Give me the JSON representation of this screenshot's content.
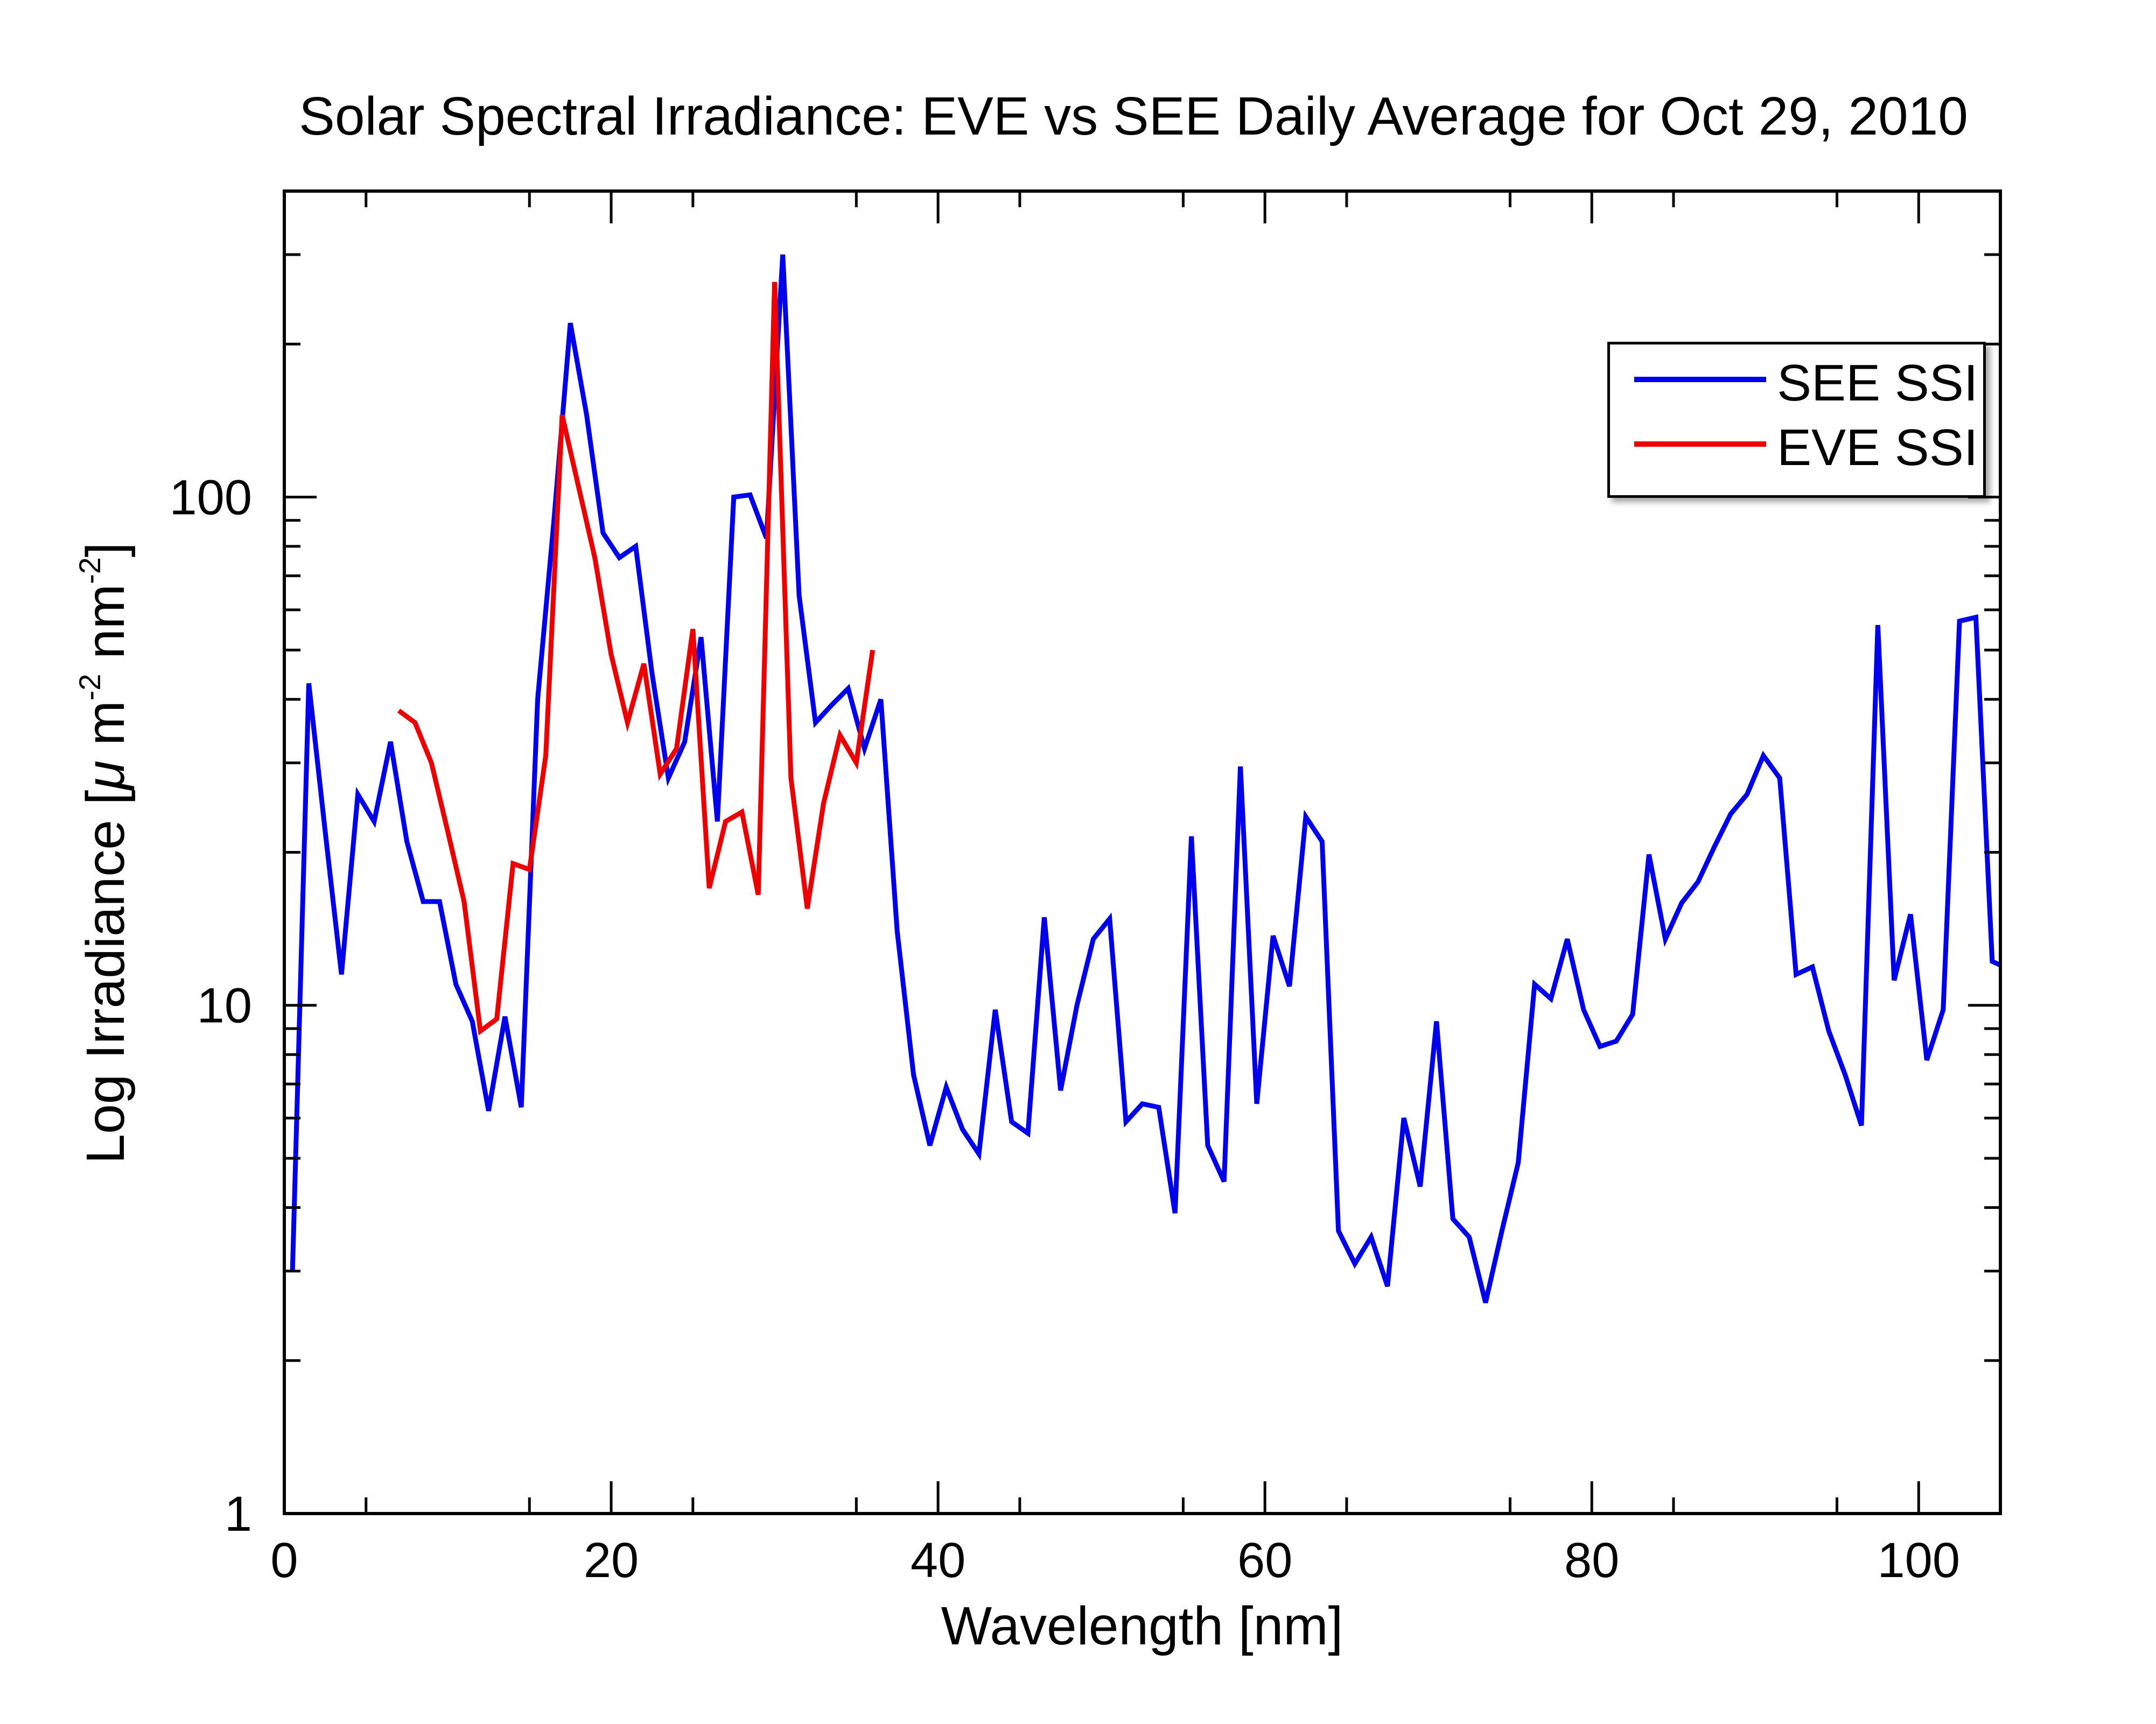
{
  "chart_data": {
    "type": "line",
    "title": "Solar Spectral Irradiance: EVE vs SEE Daily Average for Oct 29, 2010",
    "xlabel": "Wavelength [nm]",
    "ylabel_parts": [
      "Log Irradiance [",
      "μ",
      " m",
      "-2",
      " nm",
      "-2",
      "]"
    ],
    "xlim": [
      0,
      105
    ],
    "ylim": [
      1,
      400
    ],
    "yscale": "log",
    "x_ticks": [
      "0",
      "20",
      "40",
      "60",
      "80",
      "100"
    ],
    "x_tick_values": [
      0,
      20,
      40,
      60,
      80,
      100
    ],
    "y_ticks": [
      "1",
      "10",
      "100"
    ],
    "y_tick_values": [
      1,
      10,
      100
    ],
    "legend_position": "top-right",
    "series": [
      {
        "name": "SEE SSI",
        "color": "#0000ee",
        "x": [
          0.5,
          1.5,
          2.5,
          3.5,
          4.5,
          5.5,
          6.5,
          7.5,
          8.5,
          9.5,
          10.5,
          11.5,
          12.5,
          13.5,
          14.5,
          15.5,
          16.5,
          17.5,
          18.5,
          19.5,
          20.5,
          21.5,
          22.5,
          23.5,
          24.5,
          25.5,
          26.5,
          27.5,
          28.5,
          29.5,
          30.5,
          31.5,
          32.5,
          33.5,
          34.5,
          35.5,
          36.5,
          37.5,
          38.5,
          39.5,
          40.5,
          41.5,
          42.5,
          43.5,
          44.5,
          45.5,
          46.5,
          47.5,
          48.5,
          49.5,
          50.5,
          51.5,
          52.5,
          53.5,
          54.5,
          55.5,
          56.5,
          57.5,
          58.5,
          59.5,
          60.5,
          61.5,
          62.5,
          63.5,
          64.5,
          65.5,
          66.5,
          67.5,
          68.5,
          69.5,
          70.5,
          71.5,
          72.5,
          73.5,
          74.5,
          75.5,
          76.5,
          77.5,
          78.5,
          79.5,
          80.5,
          81.5,
          82.5,
          83.5,
          84.5,
          85.5,
          86.5,
          87.5,
          88.5,
          89.5,
          90.5,
          91.5,
          92.5,
          93.5,
          94.5,
          95.5,
          96.5,
          97.5,
          98.5,
          99.5,
          100.5,
          101.5,
          102.5,
          103.5,
          104.5,
          105
        ],
        "y": [
          3.0,
          43.0,
          22.0,
          11.5,
          26.0,
          23.0,
          33.0,
          21.0,
          16.0,
          16.0,
          11.0,
          9.3,
          6.2,
          9.5,
          6.3,
          40.0,
          90.0,
          220.0,
          145.0,
          85.0,
          76.0,
          80.0,
          45.0,
          28.0,
          33.0,
          53.0,
          23.0,
          100.0,
          101.0,
          83.0,
          300.0,
          64.0,
          36.0,
          39.0,
          42.0,
          32.0,
          40.0,
          14.0,
          7.3,
          5.3,
          6.9,
          5.7,
          5.1,
          9.8,
          5.9,
          5.6,
          14.9,
          6.8,
          10.0,
          13.5,
          14.8,
          5.9,
          6.4,
          6.3,
          3.9,
          21.5,
          5.3,
          4.5,
          29.5,
          6.4,
          13.7,
          10.9,
          23.5,
          21.0,
          3.6,
          3.1,
          3.5,
          2.8,
          6.0,
          4.4,
          9.3,
          3.8,
          3.5,
          2.6,
          3.6,
          4.9,
          11.0,
          10.3,
          13.5,
          9.8,
          8.3,
          8.5,
          9.6,
          19.8,
          13.5,
          15.9,
          17.5,
          20.5,
          23.8,
          26.0,
          31.0,
          28.0,
          11.5,
          11.9,
          8.9,
          7.3,
          5.8,
          56.0,
          11.2,
          15.1,
          7.8,
          9.8,
          57.0,
          58.0,
          12.2,
          12.0
        ]
      },
      {
        "name": "EVE SSI",
        "color": "#ee0000",
        "x": [
          7.0,
          8.0,
          9.0,
          10.0,
          11.0,
          12.0,
          13.0,
          14.0,
          15.0,
          16.0,
          17.0,
          18.0,
          19.0,
          20.0,
          21.0,
          22.0,
          23.0,
          24.0,
          25.0,
          26.0,
          27.0,
          28.0,
          29.0,
          30.0,
          31.0,
          32.0,
          33.0,
          34.0,
          35.0,
          36.0
        ],
        "y": [
          38.0,
          36.0,
          30.0,
          22.0,
          16.0,
          8.9,
          9.4,
          19.0,
          18.5,
          31.0,
          145.0,
          105.0,
          76.0,
          49.0,
          36.0,
          47.0,
          28.5,
          32.0,
          55.0,
          17.0,
          23.0,
          24.0,
          16.5,
          265.0,
          28.0,
          15.5,
          25.0,
          34.0,
          30.0,
          50.0
        ]
      }
    ]
  }
}
